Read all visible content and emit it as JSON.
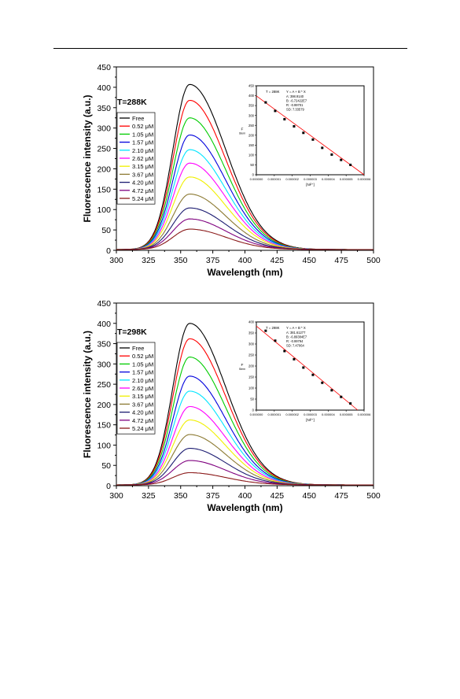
{
  "colors": {
    "Free": "#000000",
    "0.52 μM": "#ff0000",
    "1.05 μM": "#00cc00",
    "1.57 μM": "#0000dd",
    "2.10 μM": "#00e5ff",
    "2.62 μM": "#ff00ff",
    "3.15 μM": "#f0f000",
    "3.67 μM": "#8c7a33",
    "4.20 μM": "#1a1a70",
    "4.72 μM": "#7f007f",
    "5.24 μM": "#8b1a1a",
    "fit": "#ff0000"
  },
  "chart_data": [
    {
      "type": "line",
      "annotation": "T=288K",
      "xlabel": "Wavelength (nm)",
      "ylabel": "Fluorescence intensity (a.u.)",
      "xlim": [
        300,
        500
      ],
      "ylim": [
        0,
        450
      ],
      "xticks": [
        300,
        325,
        350,
        375,
        400,
        425,
        450,
        475,
        500
      ],
      "yticks": [
        0,
        50,
        100,
        150,
        200,
        250,
        300,
        350,
        400,
        450
      ],
      "legend_position": "left",
      "peak_x": 357,
      "series": [
        {
          "name": "Free",
          "peak": 405
        },
        {
          "name": "0.52 μM",
          "peak": 366
        },
        {
          "name": "1.05 μM",
          "peak": 323
        },
        {
          "name": "1.57 μM",
          "peak": 281
        },
        {
          "name": "2.10 μM",
          "peak": 245
        },
        {
          "name": "2.62 μM",
          "peak": 212
        },
        {
          "name": "3.15 μM",
          "peak": 178
        },
        {
          "name": "3.67 μM",
          "peak": 136
        },
        {
          "name": "4.20 μM",
          "peak": 102
        },
        {
          "name": "4.72 μM",
          "peak": 75
        },
        {
          "name": "5.24 μM",
          "peak": 50
        }
      ],
      "inset": {
        "title": "T = 288K",
        "fit_label": "Y = A + B * X",
        "stats": [
          "A: 398.9140",
          "B: -6.72422E7",
          "R: -0.99701",
          "SD: 7.33579"
        ],
        "ylabel": "F",
        "ylabel_sub": "Stern",
        "xlabel": "[Ni²⁺]",
        "xlim": [
          0,
          6e-06
        ],
        "ylim": [
          0,
          450
        ],
        "xticks": [
          "0.000000",
          "0.000001",
          "0.000002",
          "0.000003",
          "0.000004",
          "0.000005",
          "0.000006"
        ],
        "yticks": [
          0,
          50,
          100,
          150,
          200,
          250,
          300,
          350,
          400,
          450
        ],
        "points": {
          "x": [
            5.2e-07,
            1.05e-06,
            1.57e-06,
            2.1e-06,
            2.62e-06,
            3.15e-06,
            3.67e-06,
            4.2e-06,
            4.72e-06,
            5.24e-06
          ],
          "y": [
            366,
            323,
            281,
            245,
            212,
            178,
            136,
            102,
            75,
            50
          ]
        },
        "fit": {
          "intercept": 398.914,
          "slope": -67242200
        }
      }
    },
    {
      "type": "line",
      "annotation": "T=298K",
      "xlabel": "Wavelength (nm)",
      "ylabel": "Fluorescence intensity (a.u.)",
      "xlim": [
        300,
        500
      ],
      "ylim": [
        0,
        450
      ],
      "xticks": [
        300,
        325,
        350,
        375,
        400,
        425,
        450,
        475,
        500
      ],
      "yticks": [
        0,
        50,
        100,
        150,
        200,
        250,
        300,
        350,
        400,
        450
      ],
      "legend_position": "left",
      "peak_x": 357,
      "series": [
        {
          "name": "Free",
          "peak": 398
        },
        {
          "name": "0.52 μM",
          "peak": 360
        },
        {
          "name": "1.05 μM",
          "peak": 315
        },
        {
          "name": "1.57 μM",
          "peak": 268
        },
        {
          "name": "2.10 μM",
          "peak": 231
        },
        {
          "name": "2.62 μM",
          "peak": 193
        },
        {
          "name": "3.15 μM",
          "peak": 160
        },
        {
          "name": "3.67 μM",
          "peak": 124
        },
        {
          "name": "4.20 μM",
          "peak": 90
        },
        {
          "name": "4.72 μM",
          "peak": 60
        },
        {
          "name": "5.24 μM",
          "peak": 30
        }
      ],
      "inset": {
        "title": "T = 298K",
        "fit_label": "Y = A + B * X",
        "stats": [
          "A: 381.61277",
          "B: -6.89384E7",
          "R: -0.99794",
          "SD: 7.47064"
        ],
        "ylabel": "F",
        "ylabel_sub": "Stern",
        "xlabel": "[Ni²⁺]",
        "xlim": [
          0,
          6e-06
        ],
        "ylim": [
          0,
          400
        ],
        "xticks": [
          "0.000000",
          "0.000001",
          "0.000002",
          "0.000003",
          "0.000004",
          "0.000005",
          "0.000006"
        ],
        "yticks": [
          0,
          50,
          100,
          150,
          200,
          250,
          300,
          350,
          400
        ],
        "points": {
          "x": [
            5.2e-07,
            1.05e-06,
            1.57e-06,
            2.1e-06,
            2.62e-06,
            3.15e-06,
            3.67e-06,
            4.2e-06,
            4.72e-06,
            5.24e-06
          ],
          "y": [
            360,
            315,
            268,
            231,
            193,
            160,
            124,
            90,
            60,
            30
          ]
        },
        "fit": {
          "intercept": 381.61277,
          "slope": -68938400
        }
      }
    }
  ]
}
